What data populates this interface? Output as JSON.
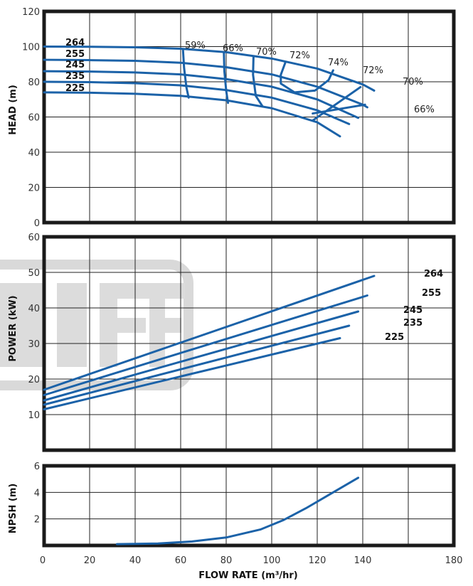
{
  "chart_data": [
    {
      "type": "line",
      "ylabel": "HEAD (m)",
      "xlim": [
        0,
        180
      ],
      "ylim": [
        0,
        120
      ],
      "yticks": [
        0,
        20,
        40,
        60,
        80,
        100,
        120
      ],
      "color": "#1b62a8",
      "series": [
        {
          "name": "264",
          "x": [
            0,
            20,
            40,
            60,
            80,
            100,
            120,
            140,
            145
          ],
          "y": [
            100,
            99.9,
            99.6,
            98.8,
            96.8,
            93.2,
            87.5,
            78.5,
            75
          ]
        },
        {
          "name": "255",
          "x": [
            0,
            20,
            40,
            60,
            80,
            100,
            120,
            140,
            142
          ],
          "y": [
            92.5,
            92.3,
            91.9,
            90.8,
            88.3,
            84.2,
            77.2,
            67,
            65.5
          ]
        },
        {
          "name": "245",
          "x": [
            0,
            20,
            40,
            60,
            80,
            100,
            120,
            138
          ],
          "y": [
            86,
            85.8,
            85.3,
            84.2,
            81.5,
            77.2,
            70,
            59.5
          ]
        },
        {
          "name": "235",
          "x": [
            0,
            20,
            40,
            60,
            80,
            100,
            120,
            134
          ],
          "y": [
            80,
            79.8,
            79.2,
            78,
            75.3,
            71,
            63.8,
            56
          ]
        },
        {
          "name": "225",
          "x": [
            0,
            20,
            40,
            60,
            80,
            100,
            120,
            130
          ],
          "y": [
            74,
            73.8,
            73.2,
            72,
            69.5,
            65,
            57,
            49
          ]
        }
      ],
      "efficiency_contours": [
        {
          "label": "59%",
          "x": [
            61,
            61.5,
            62.5,
            63.5
          ],
          "y": [
            98.5,
            88,
            77,
            71
          ]
        },
        {
          "label": "66%",
          "x": [
            79,
            79.2,
            80,
            80.8
          ],
          "y": [
            96.5,
            86,
            75,
            68
          ]
        },
        {
          "label": "70%",
          "x": [
            92,
            91.8,
            93,
            96
          ],
          "y": [
            94.5,
            84,
            72,
            66
          ]
        },
        {
          "label": "72%",
          "x": [
            106,
            104,
            104,
            110,
            119,
            125,
            127
          ],
          "y": [
            91,
            84,
            79,
            74,
            75,
            81,
            86.5
          ]
        }
      ],
      "efficiency_lines": [
        {
          "label": "70%",
          "x": [
            118,
            139
          ],
          "y": [
            58,
            77
          ]
        },
        {
          "label": "66%",
          "x": [
            118,
            141
          ],
          "y": [
            62,
            67
          ]
        }
      ],
      "efficiency_label_text": {
        "l59": "59%",
        "l66a": "66%",
        "l70a": "70%",
        "l72a": "72%",
        "l74": "74%",
        "l72b": "72%",
        "l70b": "70%",
        "l66b": "66%"
      }
    },
    {
      "type": "line",
      "ylabel": "POWER (kW)",
      "xlim": [
        0,
        180
      ],
      "ylim": [
        0,
        60
      ],
      "yticks": [
        10,
        20,
        30,
        40,
        50,
        60
      ],
      "color": "#1b62a8",
      "series": [
        {
          "name": "264",
          "x": [
            0,
            145
          ],
          "y": [
            17,
            49
          ]
        },
        {
          "name": "255",
          "x": [
            0,
            142
          ],
          "y": [
            15.5,
            43.5
          ]
        },
        {
          "name": "245",
          "x": [
            0,
            138
          ],
          "y": [
            14,
            39
          ]
        },
        {
          "name": "235",
          "x": [
            0,
            134
          ],
          "y": [
            12.8,
            35
          ]
        },
        {
          "name": "225",
          "x": [
            0,
            130
          ],
          "y": [
            11.5,
            31.5
          ]
        }
      ]
    },
    {
      "type": "line",
      "xlabel": "FLOW RATE (m³/hr)",
      "ylabel": "NPSH (m)",
      "xlim": [
        0,
        180
      ],
      "ylim": [
        0,
        6
      ],
      "xticks": [
        0,
        20,
        40,
        60,
        80,
        100,
        120,
        140,
        180
      ],
      "yticks": [
        2,
        4,
        6
      ],
      "color": "#1b62a8",
      "series": [
        {
          "name": "NPSH",
          "x": [
            32,
            50,
            65,
            80,
            95,
            105,
            115,
            125,
            138
          ],
          "y": [
            0.1,
            0.15,
            0.3,
            0.6,
            1.2,
            1.9,
            2.8,
            3.8,
            5.1
          ]
        }
      ]
    }
  ]
}
